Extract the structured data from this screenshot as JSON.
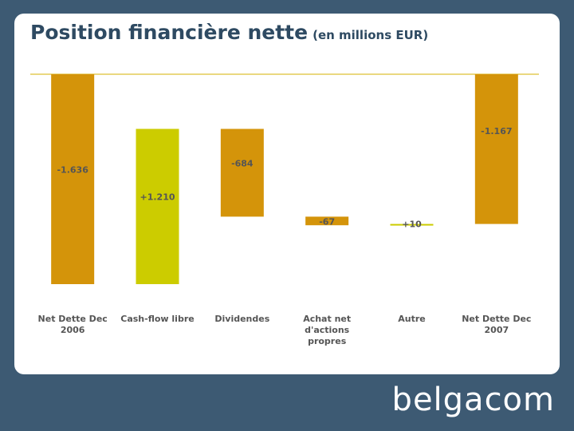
{
  "title": "Position financière nette",
  "subtitle": "(en millions EUR)",
  "logo_text": "belgacom",
  "colors": {
    "background": "#3d5a73",
    "title": "#2e4a62",
    "bar_dark": "#d4940a",
    "bar_light": "#cccc00",
    "line": "#d4b000",
    "label": "#555555"
  },
  "chart_data": {
    "type": "bar",
    "subtype": "waterfall",
    "categories": [
      "Net Dette Dec 2006",
      "Cash-flow libre",
      "Dividendes",
      "Achat net d'actions propres",
      "Autre",
      "Net Dette Dec 2007"
    ],
    "category_lines": [
      [
        "Net Dette Dec",
        "2006"
      ],
      [
        "Cash-flow libre"
      ],
      [
        "Dividendes"
      ],
      [
        "Achat net",
        "d'actions",
        "propres"
      ],
      [
        "Autre"
      ],
      [
        "Net Dette Dec",
        "2007"
      ]
    ],
    "values": [
      -1636,
      1210,
      -684,
      -67,
      10,
      -1167
    ],
    "data_labels": [
      "-1.636",
      "+1.210",
      "-684",
      "-67",
      "+10",
      "-1.167"
    ],
    "bar_colors": [
      "#d4940a",
      "#cccc00",
      "#d4940a",
      "#d4940a",
      "#cccc00",
      "#d4940a"
    ],
    "ylim": [
      -1636,
      0
    ],
    "grid": false,
    "legend": "none"
  }
}
